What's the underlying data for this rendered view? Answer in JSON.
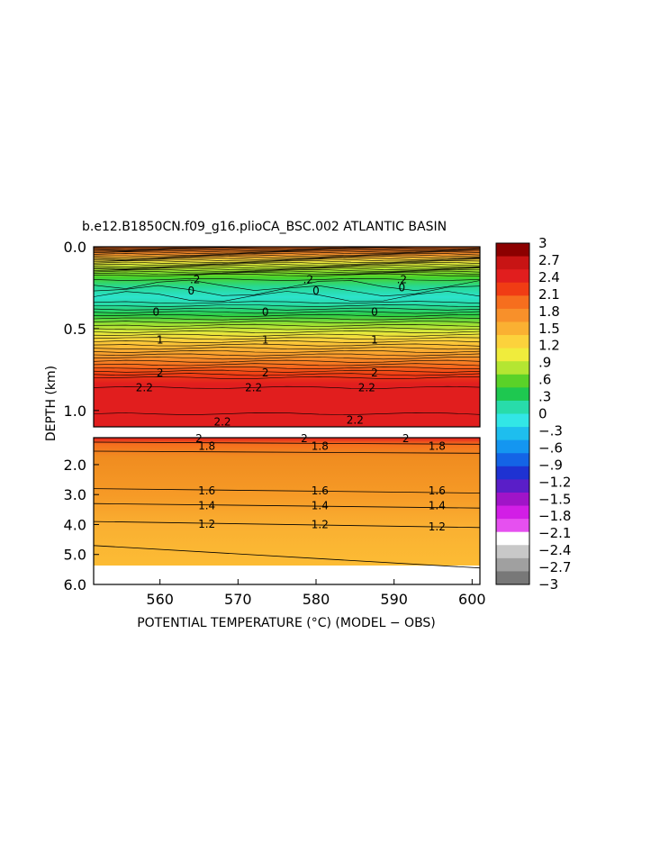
{
  "chart_data": {
    "type": "heatmap",
    "title": "b.e12.B1850CN.f09_g16.plioCA_BSC.002 ATLANTIC BASIN",
    "xlabel": "POTENTIAL TEMPERATURE (°C) (MODEL − OBS)",
    "ylabel": "DEPTH (km)",
    "xlim": [
      551.5,
      601
    ],
    "x_ticks": [
      "560",
      "570",
      "580",
      "590",
      "600"
    ],
    "y_ticks_upper": [
      "0.0",
      "0.5",
      "1.0"
    ],
    "y_ticks_lower": [
      "2.0",
      "3.0",
      "4.0",
      "5.0",
      "6.0"
    ],
    "upper_panel_depth_km": [
      0,
      1.1
    ],
    "lower_panel_depth_km": [
      1.1,
      6.0
    ],
    "colorbar": {
      "levels": [
        "3",
        "2.7",
        "2.4",
        "2.1",
        "1.8",
        "1.5",
        "1.2",
        ".9",
        ".6",
        ".3",
        "0",
        "−.3",
        "−.6",
        "−.9",
        "−1.2",
        "−1.5",
        "−1.8",
        "−2.1",
        "−2.4",
        "−2.7",
        "−3"
      ],
      "colors": [
        "#8c0000",
        "#c81414",
        "#e11e1e",
        "#f03c14",
        "#f66e1e",
        "#f8902a",
        "#fab032",
        "#fcd23c",
        "#f0ec3c",
        "#b4e632",
        "#5ad228",
        "#1ec850",
        "#28dcaa",
        "#32e6e6",
        "#1ebeee",
        "#1496f0",
        "#1464e6",
        "#1e32d2",
        "#5a1ec8",
        "#a014c8",
        "#d21ee6",
        "#e650f0",
        "#ffffff",
        "#c8c8c8",
        "#a0a0a0",
        "#787878"
      ]
    },
    "contour_labels": [
      {
        "text": "0",
        "x": 564,
        "depth_km": 0.27
      },
      {
        "text": "0",
        "x": 580,
        "depth_km": 0.27
      },
      {
        "text": "0",
        "x": 591,
        "depth_km": 0.25
      },
      {
        "text": ".2",
        "x": 564.5,
        "depth_km": 0.2
      },
      {
        "text": ".2",
        "x": 579,
        "depth_km": 0.2
      },
      {
        "text": ".2",
        "x": 591,
        "depth_km": 0.2
      },
      {
        "text": "0",
        "x": 559.5,
        "depth_km": 0.4
      },
      {
        "text": "0",
        "x": 573.5,
        "depth_km": 0.4
      },
      {
        "text": "0",
        "x": 587.5,
        "depth_km": 0.4
      },
      {
        "text": "1",
        "x": 560,
        "depth_km": 0.57
      },
      {
        "text": "1",
        "x": 573.5,
        "depth_km": 0.57
      },
      {
        "text": "1",
        "x": 587.5,
        "depth_km": 0.57
      },
      {
        "text": "2",
        "x": 560,
        "depth_km": 0.77
      },
      {
        "text": "2",
        "x": 573.5,
        "depth_km": 0.77
      },
      {
        "text": "2",
        "x": 587.5,
        "depth_km": 0.77
      },
      {
        "text": "2.2",
        "x": 558,
        "depth_km": 0.86
      },
      {
        "text": "2.2",
        "x": 572,
        "depth_km": 0.86
      },
      {
        "text": "2.2",
        "x": 586.5,
        "depth_km": 0.86
      },
      {
        "text": "2.2",
        "x": 568,
        "depth_km": 1.07
      },
      {
        "text": "2.2",
        "x": 585,
        "depth_km": 1.06
      },
      {
        "text": "2",
        "x": 565,
        "depth_km": 1.13
      },
      {
        "text": "2",
        "x": 578.5,
        "depth_km": 1.13
      },
      {
        "text": "2",
        "x": 591.5,
        "depth_km": 1.13
      },
      {
        "text": "1.8",
        "x": 566,
        "depth_km": 1.38
      },
      {
        "text": "1.8",
        "x": 580.5,
        "depth_km": 1.38
      },
      {
        "text": "1.8",
        "x": 595.5,
        "depth_km": 1.38
      },
      {
        "text": "1.6",
        "x": 566,
        "depth_km": 2.87
      },
      {
        "text": "1.6",
        "x": 580.5,
        "depth_km": 2.87
      },
      {
        "text": "1.6",
        "x": 595.5,
        "depth_km": 2.87
      },
      {
        "text": "1.4",
        "x": 566,
        "depth_km": 3.37
      },
      {
        "text": "1.4",
        "x": 580.5,
        "depth_km": 3.37
      },
      {
        "text": "1.4",
        "x": 595.5,
        "depth_km": 3.37
      },
      {
        "text": "1.2",
        "x": 566,
        "depth_km": 3.98
      },
      {
        "text": "1.2",
        "x": 580.5,
        "depth_km": 4.0
      },
      {
        "text": "1.2",
        "x": 595.5,
        "depth_km": 4.08
      }
    ],
    "grid": false,
    "legend": "colorbar-right"
  }
}
